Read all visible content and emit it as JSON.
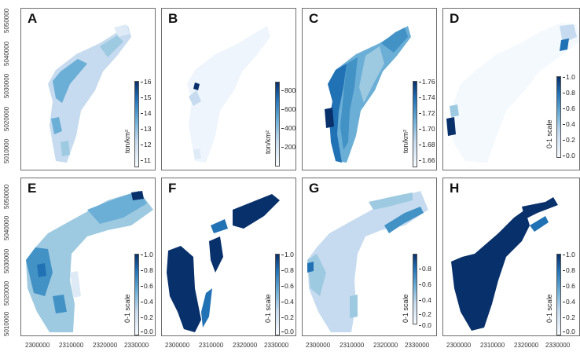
{
  "figure": {
    "panels": [
      {
        "letter": "A",
        "legend_unit": "ton/km²",
        "legend_ticks": [
          "16",
          "15",
          "14",
          "13",
          "12",
          "11"
        ]
      },
      {
        "letter": "B",
        "legend_unit": "ton/km²",
        "legend_ticks": [
          "800",
          "600",
          "400",
          "200"
        ]
      },
      {
        "letter": "C",
        "legend_unit": "ton/km²",
        "legend_ticks": [
          "1.76",
          "1.74",
          "1.72",
          "1.70",
          "1.68",
          "1.66"
        ]
      },
      {
        "letter": "D",
        "legend_unit": "0-1 scale",
        "legend_ticks": [
          "1.0",
          "0.8",
          "0.6",
          "0.4",
          "0.2",
          "0.0"
        ]
      },
      {
        "letter": "E",
        "legend_unit": "0-1 scale",
        "legend_ticks": [
          "1.0",
          "0.8",
          "0.6",
          "0.4",
          "0.2",
          "0.0"
        ]
      },
      {
        "letter": "F",
        "legend_unit": "0-1 scale",
        "legend_ticks": [
          "1.0",
          "0.8",
          "0.6",
          "0.4",
          "0.2",
          "0.0"
        ]
      },
      {
        "letter": "G",
        "legend_unit": "0-1 scale",
        "legend_ticks": [
          "0.8",
          "0.6",
          "0.4",
          "0.2",
          "0.0"
        ]
      },
      {
        "letter": "H",
        "legend_unit": "0-1 scale",
        "legend_ticks": [
          "1.0",
          "0.8",
          "0.6",
          "0.4",
          "0.2",
          "0.0"
        ]
      }
    ],
    "y_axis_ticks": [
      "5050000",
      "5040000",
      "5030000",
      "5020000",
      "5010000"
    ],
    "x_axis_ticks": [
      "2300000",
      "2310000",
      "2320000",
      "2330000"
    ],
    "colors": {
      "low": "#f7fbff",
      "mid": "#6baed6",
      "high": "#08306b",
      "frame": "#6e6e6e"
    }
  }
}
